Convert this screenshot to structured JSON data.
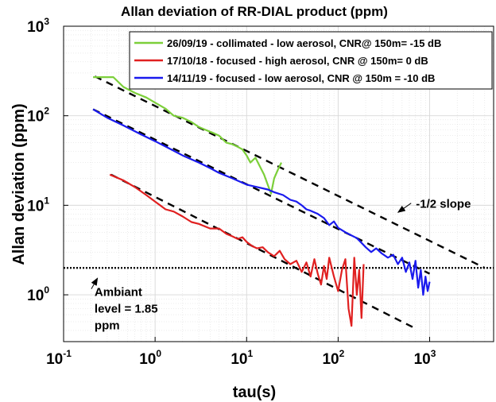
{
  "chart_data": {
    "type": "line",
    "title": "Allan deviation of RR-DIAL product (ppm)",
    "xlabel": "tau(s)",
    "ylabel": "Allan deviation (ppm)",
    "x_scale": "log",
    "y_scale": "log",
    "xlim": [
      0.1,
      5000
    ],
    "ylim": [
      0.3,
      1000
    ],
    "grid": true,
    "legend_position": "top-right",
    "x_ticks": [
      {
        "base": "10",
        "exp": "-1"
      },
      {
        "base": "10",
        "exp": "0"
      },
      {
        "base": "10",
        "exp": "1"
      },
      {
        "base": "10",
        "exp": "2"
      },
      {
        "base": "10",
        "exp": "3"
      }
    ],
    "y_ticks": [
      {
        "base": "10",
        "exp": "0"
      },
      {
        "base": "10",
        "exp": "1"
      },
      {
        "base": "10",
        "exp": "2"
      },
      {
        "base": "10",
        "exp": "3"
      }
    ],
    "series": [
      {
        "name": "26/09/19 - collimated - low aerosol, CNR@ 150m= -15 dB",
        "color": "#7ccf3a",
        "x": [
          0.21,
          0.3,
          0.35,
          0.45,
          0.6,
          0.8,
          1.0,
          1.3,
          1.6,
          2.0,
          2.5,
          3.0,
          3.5,
          4.2,
          5.0,
          6.0,
          7.0,
          8.0,
          9.0,
          10.0,
          11.0,
          12.5,
          14.0,
          15.5,
          17.0,
          18.5,
          20.0,
          22.0,
          24.0
        ],
        "y": [
          270,
          270,
          270,
          210,
          180,
          160,
          140,
          120,
          100,
          95,
          85,
          75,
          70,
          65,
          60,
          50,
          48,
          45,
          42,
          36,
          30,
          34,
          27,
          22,
          17,
          13.5,
          20,
          25,
          30
        ]
      },
      {
        "name": "17/10/18 - focused - high aerosol, CNR @ 150m= 0 dB",
        "color": "#e02020",
        "x": [
          0.32,
          0.45,
          0.6,
          0.8,
          1.0,
          1.3,
          1.6,
          2.0,
          2.5,
          3.0,
          4.0,
          5.0,
          6.0,
          7.0,
          8.0,
          9.0,
          10.0,
          11.5,
          13.0,
          15.0,
          17.0,
          20.0,
          23.0,
          26.0,
          30.0,
          35.0,
          40.0,
          45.0,
          50.0,
          55.0,
          60.0,
          65.0,
          70.0,
          75.0,
          80.0,
          90.0,
          100.0,
          110.0,
          120.0,
          130.0,
          140.0,
          150.0,
          160.0,
          170.0,
          180.0,
          190.0
        ],
        "y": [
          22,
          19,
          16,
          13,
          11,
          9,
          8.5,
          7.5,
          6.5,
          6.2,
          5.5,
          5.5,
          4.8,
          4.5,
          4.2,
          4.4,
          3.9,
          3.5,
          3.3,
          3.4,
          3.0,
          2.7,
          3.1,
          2.5,
          2.2,
          2.4,
          1.8,
          2.3,
          1.6,
          2.5,
          1.7,
          1.3,
          2.1,
          1.5,
          2.6,
          1.6,
          1.1,
          1.9,
          2.5,
          0.7,
          0.45,
          2.6,
          1.0,
          1.9,
          0.55,
          2.2
        ]
      },
      {
        "name": "14/11/19 - focused - low aerosol, CNR @ 150m = -10 dB",
        "color": "#1a1aee",
        "x": [
          0.21,
          0.3,
          0.45,
          0.7,
          1.0,
          1.5,
          2.0,
          3.0,
          4.0,
          5.0,
          7.0,
          10.0,
          13.0,
          17.0,
          20.0,
          25.0,
          30.0,
          35.0,
          40.0,
          45.0,
          50.0,
          60.0,
          70.0,
          80.0,
          90.0,
          100.0,
          120.0,
          140.0,
          160.0,
          180.0,
          200.0,
          230.0,
          260.0,
          300.0,
          350.0,
          400.0,
          450.0,
          500.0,
          550.0,
          600.0,
          650.0,
          700.0,
          750.0,
          800.0,
          850.0,
          900.0,
          950.0,
          1000.0
        ],
        "y": [
          118,
          95,
          78,
          62,
          52,
          42,
          36,
          30,
          26,
          23,
          20,
          17,
          16,
          15,
          14,
          13,
          11.5,
          11,
          10,
          9,
          8.7,
          8,
          7.2,
          6,
          6.6,
          5.6,
          5,
          4.6,
          4.3,
          3.8,
          3.4,
          3.0,
          3.3,
          2.9,
          2.6,
          2.8,
          2.2,
          2.6,
          1.8,
          2.3,
          1.5,
          2.4,
          1.2,
          1.9,
          1.0,
          1.6,
          1.1,
          1.4
        ]
      },
      {
        "name": "",
        "color": "#000000",
        "style": "dashed",
        "x": [
          0.22,
          4000
        ],
        "y": [
          275,
          2.0
        ]
      },
      {
        "name": "",
        "color": "#000000",
        "style": "dashed",
        "x": [
          0.21,
          1000
        ],
        "y": [
          118,
          1.72
        ]
      },
      {
        "name": "",
        "color": "#000000",
        "style": "dashed",
        "x": [
          0.33,
          700
        ],
        "y": [
          22,
          0.42
        ]
      },
      {
        "name": "",
        "color": "#000000",
        "style": "dotted",
        "x": [
          0.1,
          5000
        ],
        "y": [
          2.0,
          2.0
        ]
      }
    ],
    "annotations": [
      {
        "text": "-1/2 slope",
        "x": 900,
        "y": 11,
        "arrow_to": [
          400,
          8.5
        ]
      },
      {
        "lines": [
          "Ambiant",
          "level = 1.85",
          "ppm"
        ],
        "x": 0.3,
        "y": 0.95,
        "arrow_to": [
          0.2,
          1.6
        ]
      }
    ]
  }
}
